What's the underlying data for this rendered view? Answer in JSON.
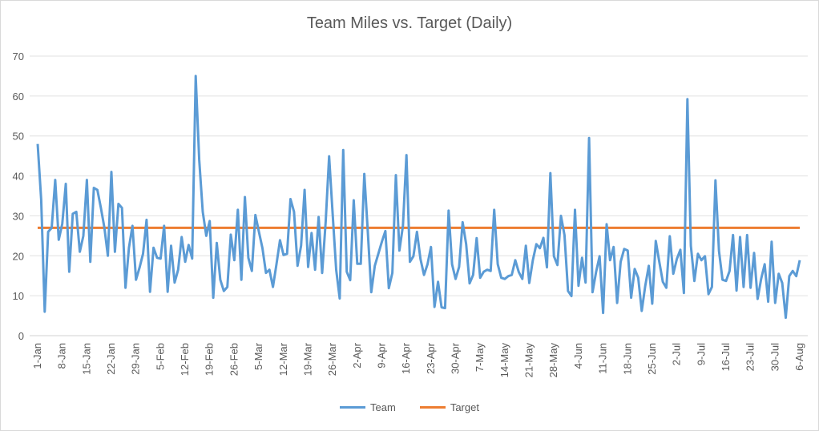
{
  "chart_data": {
    "type": "line",
    "title": "Team Miles vs. Target (Daily)",
    "xlabel": "",
    "ylabel": "",
    "ylim": [
      0,
      70
    ],
    "y_ticks": [
      0,
      10,
      20,
      30,
      40,
      50,
      60,
      70
    ],
    "grid": "horizontal",
    "legend_position": "bottom",
    "x_tick_labels": [
      "1-Jan",
      "8-Jan",
      "15-Jan",
      "22-Jan",
      "29-Jan",
      "5-Feb",
      "12-Feb",
      "19-Feb",
      "26-Feb",
      "5-Mar",
      "12-Mar",
      "19-Mar",
      "26-Mar",
      "2-Apr",
      "9-Apr",
      "16-Apr",
      "23-Apr",
      "30-Apr",
      "7-May",
      "14-May",
      "21-May",
      "28-May",
      "4-Jun",
      "11-Jun",
      "18-Jun",
      "25-Jun",
      "2-Jul",
      "9-Jul",
      "16-Jul",
      "23-Jul",
      "30-Jul",
      "6-Aug"
    ],
    "x_tick_interval_days": 7,
    "series": [
      {
        "name": "Team",
        "color": "#5b9bd5",
        "values": [
          48,
          34,
          6,
          26,
          27,
          39,
          24,
          28,
          38,
          16,
          30.5,
          31,
          21,
          25,
          39,
          18.5,
          37,
          36.5,
          32,
          27,
          20,
          41,
          21,
          33,
          32,
          12,
          22,
          27.5,
          14,
          17,
          20.5,
          29,
          11,
          22,
          19.5,
          19.3,
          27.5,
          11,
          22.5,
          13.3,
          16.5,
          24.7,
          18.5,
          22.7,
          19.3,
          65,
          44,
          31,
          25,
          28.7,
          9.5,
          23.2,
          14,
          11.2,
          12.2,
          25.3,
          18.9,
          31.5,
          14,
          34.7,
          19.5,
          16.2,
          30.2,
          26,
          21.9,
          15.7,
          16.5,
          12.2,
          17.9,
          23.9,
          20.2,
          20.5,
          34.2,
          31,
          17.5,
          22.5,
          36.5,
          17.2,
          25.7,
          16.5,
          29.7,
          15.7,
          28.5,
          44.9,
          30.5,
          16.5,
          9.3,
          46.5,
          16,
          13.9,
          33.9,
          18,
          18,
          40.5,
          25.9,
          10.9,
          17.5,
          20.5,
          23.5,
          26.2,
          11.9,
          15.7,
          40.2,
          21.3,
          27.5,
          45.2,
          18.5,
          19.9,
          26,
          19.2,
          15.2,
          17.9,
          22.2,
          7.2,
          13.5,
          7.1,
          6.9,
          31.3,
          17.9,
          14.2,
          17.2,
          28.4,
          22.9,
          13.1,
          15.2,
          24.4,
          14.5,
          16,
          16.5,
          16.2,
          31.5,
          17.9,
          14.5,
          14.2,
          14.9,
          15.2,
          18.9,
          15.9,
          14.2,
          22.5,
          13.2,
          18.9,
          22.9,
          21.9,
          24.5,
          17.1,
          40.7,
          19.9,
          17.7,
          30,
          25.2,
          11.2,
          9.9,
          31.5,
          12.5,
          19.5,
          13.3,
          49.5,
          10.9,
          15.9,
          19.9,
          5.7,
          27.9,
          18.9,
          22.2,
          8.2,
          18.5,
          21.7,
          21.3,
          9.5,
          16.7,
          14.5,
          6.2,
          12.5,
          17.5,
          8,
          23.7,
          18.5,
          13.5,
          12,
          24.9,
          15.5,
          19.2,
          21.5,
          10.7,
          59.2,
          22.5,
          13.7,
          20.5,
          18.9,
          19.9,
          10.4,
          12.2,
          38.9,
          21.2,
          14,
          13.7,
          16.2,
          25.2,
          11.3,
          24.7,
          12.2,
          25.2,
          12,
          20.7,
          9.2,
          14.2,
          17.9,
          8.5,
          23.5,
          8.2,
          15.5,
          13.2,
          4.5,
          14.9,
          16.2,
          14.9,
          18.9
        ]
      },
      {
        "name": "Target",
        "color": "#ed7d31",
        "constant": 27
      }
    ]
  }
}
